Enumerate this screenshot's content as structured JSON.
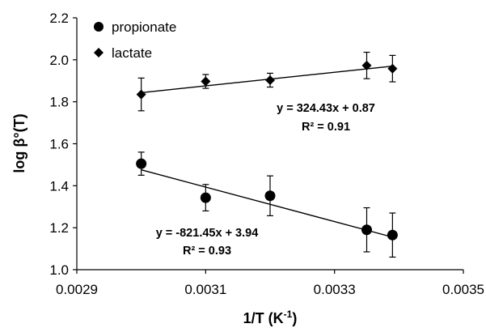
{
  "chart_data": {
    "type": "scatter",
    "xlabel": "1/T (K",
    "xlabel_sup": "-1",
    "xlabel_end": ")",
    "ylabel": "log β°(T)",
    "xlim": [
      0.0029,
      0.0035
    ],
    "ylim": [
      1.0,
      2.2
    ],
    "x_ticks": [
      "0.0029",
      "0.0031",
      "0.0033",
      "0.0035"
    ],
    "x_tick_values": [
      0.0029,
      0.0031,
      0.0033,
      0.0035
    ],
    "y_ticks": [
      "1.0",
      "1.2",
      "1.4",
      "1.6",
      "1.8",
      "2.0",
      "2.2"
    ],
    "y_tick_values": [
      1.0,
      1.2,
      1.4,
      1.6,
      1.8,
      2.0,
      2.2
    ],
    "legend_position": "top-left",
    "series": [
      {
        "name": "propionate",
        "marker": "circle",
        "color": "#000000",
        "x": [
          0.003,
          0.0031,
          0.0032,
          0.00335,
          0.00339
        ],
        "y": [
          1.505,
          1.343,
          1.352,
          1.19,
          1.165
        ],
        "err": [
          0.055,
          0.063,
          0.095,
          0.105,
          0.105
        ],
        "fit": {
          "slope": -821.45,
          "intercept": 3.94,
          "equation": "y = -821.45x + 3.94",
          "r2": "R² = 0.93"
        }
      },
      {
        "name": "lactate",
        "marker": "diamond",
        "color": "#000000",
        "x": [
          0.003,
          0.0031,
          0.0032,
          0.00335,
          0.00339
        ],
        "y": [
          1.835,
          1.897,
          1.903,
          1.973,
          1.958
        ],
        "err": [
          0.078,
          0.033,
          0.033,
          0.063,
          0.063
        ],
        "fit": {
          "slope": 324.43,
          "intercept": 0.87,
          "equation": "y = 324.43x + 0.87",
          "r2": "R² = 0.91"
        }
      }
    ]
  }
}
